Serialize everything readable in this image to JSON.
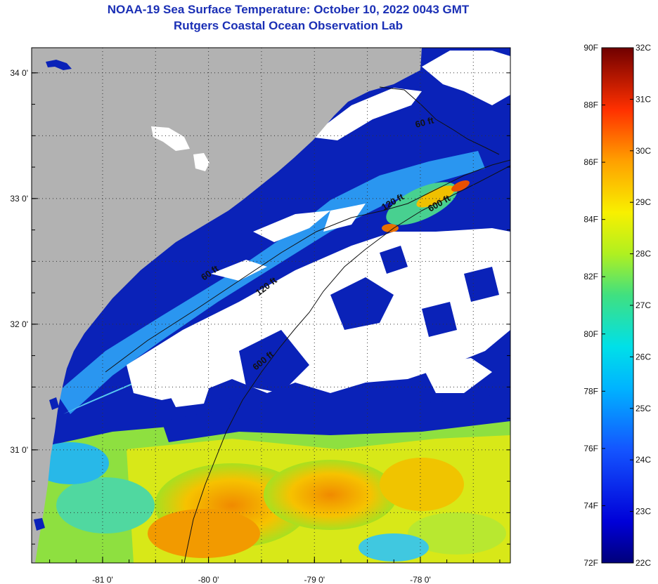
{
  "header": {
    "title_line1": "NOAA-19 Sea Surface Temperature:  October 10, 2022 0043 GMT",
    "title_line2": "Rutgers Coastal Ocean Observation Lab"
  },
  "map": {
    "lat_range": [
      30.1,
      34.2
    ],
    "lon_range": [
      -81.67,
      -77.15
    ],
    "lat_ticks": [
      {
        "value": 34.0,
        "label": "34 0'"
      },
      {
        "value": 33.0,
        "label": "33 0'"
      },
      {
        "value": 32.0,
        "label": "32 0'"
      },
      {
        "value": 31.0,
        "label": "31 0'"
      }
    ],
    "lon_ticks": [
      {
        "value": -81.0,
        "label": "-81 0'"
      },
      {
        "value": -80.0,
        "label": "-80 0'"
      },
      {
        "value": -79.0,
        "label": "-79 0'"
      },
      {
        "value": -78.0,
        "label": "-78 0'"
      }
    ],
    "depth_labels": [
      "60 ft",
      "120 ft",
      "600 ft",
      "60 ft",
      "120 ft",
      "600 ft"
    ],
    "colors": {
      "land": "#b2b2b2",
      "cloud": "#ffffff",
      "cold_water": "#0a1fb0",
      "warm_water": "#f0a000"
    }
  },
  "colorbar": {
    "f_labels": [
      "90F",
      "88F",
      "86F",
      "84F",
      "82F",
      "80F",
      "78F",
      "76F",
      "74F",
      "72F"
    ],
    "c_labels": [
      "32C",
      "31C",
      "30C",
      "29C",
      "28C",
      "27C",
      "26C",
      "25C",
      "24C",
      "23C",
      "22C"
    ],
    "f_range": [
      72,
      90
    ],
    "c_range": [
      22,
      32
    ]
  }
}
